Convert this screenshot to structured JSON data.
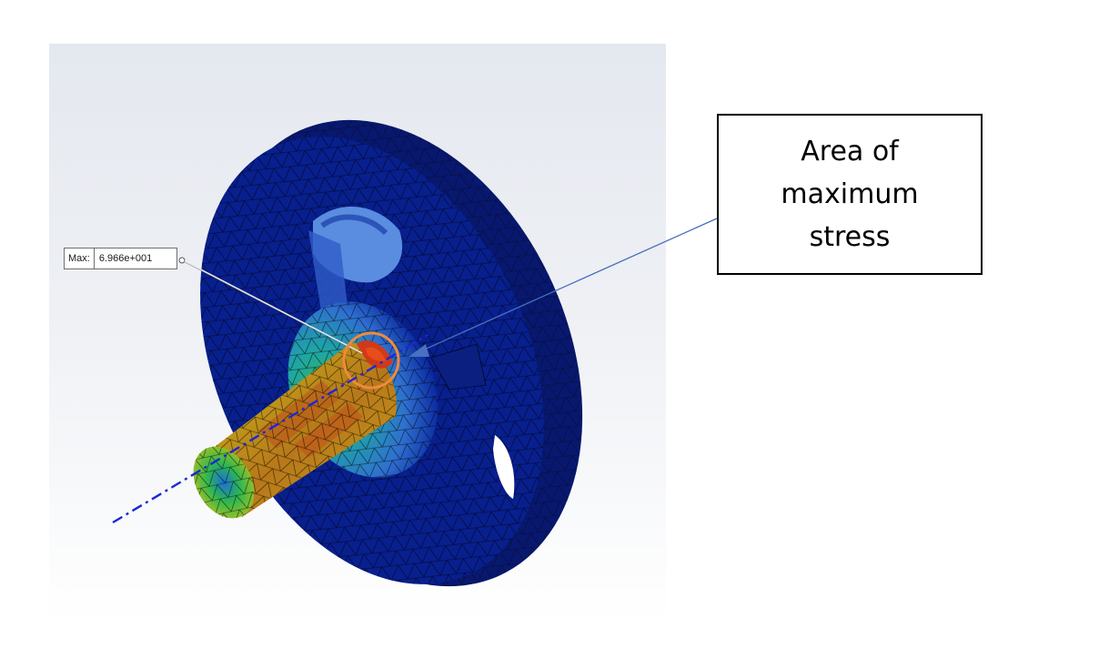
{
  "result_probe": {
    "label": "Max:",
    "value": "6.966e+001"
  },
  "callout": {
    "text": "Area of maximum stress"
  },
  "colors": {
    "stress_low": "#081f8e",
    "stress_mid_low": "#2f6fd0",
    "stress_mid": "#2fb850",
    "stress_mid_high": "#c8c21c",
    "stress_high": "#c32a1a",
    "highlight_circle": "#f08a3c",
    "callout_arrow": "#4a70bf",
    "axis_line": "#1a28d8"
  },
  "icons": {
    "model": "stress-plot-model-icon",
    "probe_leader": "leader-line-icon",
    "arrow": "arrow-icon"
  }
}
